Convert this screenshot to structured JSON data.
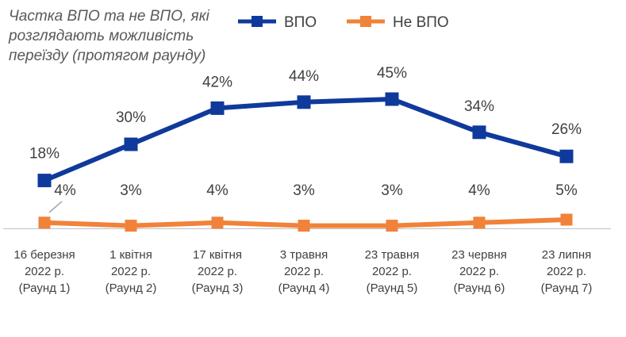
{
  "chart_data": {
    "type": "line",
    "title": "Частка ВПО та не ВПО, які розглядають можливість переїзду (протягом раунду)",
    "categories": [
      [
        "16 березня",
        "2022 р.",
        "(Раунд 1)"
      ],
      [
        "1 квітня",
        "2022 р.",
        "(Раунд 2)"
      ],
      [
        "17 квітня",
        "2022 р.",
        "(Раунд 3)"
      ],
      [
        "3 травня",
        "2022 р.",
        "(Раунд 4)"
      ],
      [
        "23 травня",
        "2022 р.",
        "(Раунд 5)"
      ],
      [
        "23 червня",
        "2022 р.",
        "(Раунд 6)"
      ],
      [
        "23 липня",
        "2022 р.",
        "(Раунд 7)"
      ]
    ],
    "ylim": [
      0,
      50
    ],
    "grid": false,
    "legend_position": "top-right",
    "series": [
      {
        "name": "ВПО",
        "color": "#0F3A9C",
        "values": [
          18,
          30,
          42,
          44,
          45,
          34,
          26
        ],
        "labels": [
          "18%",
          "30%",
          "42%",
          "44%",
          "45%",
          "34%",
          "26%"
        ]
      },
      {
        "name": "Не ВПО",
        "color": "#F0823A",
        "values": [
          4,
          3,
          4,
          3,
          3,
          4,
          5
        ],
        "labels": [
          "4%",
          "3%",
          "4%",
          "3%",
          "3%",
          "4%",
          "5%"
        ]
      }
    ]
  }
}
